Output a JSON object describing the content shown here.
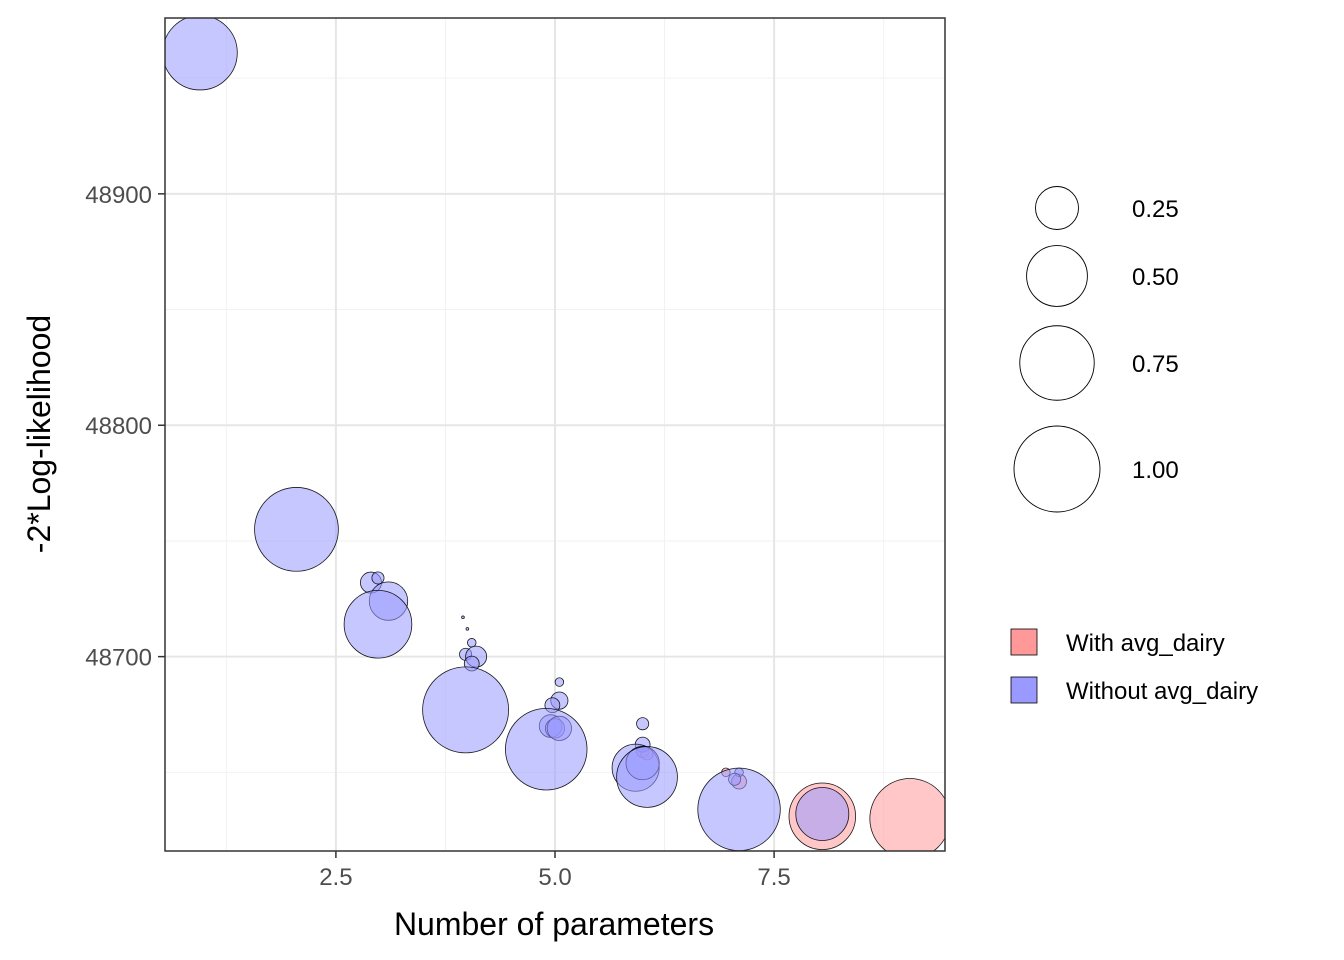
{
  "chart_data": {
    "type": "scatter",
    "xlabel": "Number of parameters",
    "ylabel": "-2*Log-likelihood",
    "xlim": [
      0.55,
      9.45
    ],
    "ylim": [
      48616,
      48976
    ],
    "x_ticks": [
      2.5,
      5.0,
      7.5
    ],
    "x_tick_labels": [
      "2.5",
      "5.0",
      "7.5"
    ],
    "y_ticks": [
      48700,
      48800,
      48900
    ],
    "y_tick_labels": [
      "48700",
      "48800",
      "48900"
    ],
    "grid": true,
    "size_legend": {
      "values": [
        0.25,
        0.5,
        0.75,
        1.0
      ],
      "labels": [
        "0.25",
        "0.50",
        "0.75",
        "1.00"
      ]
    },
    "color_legend": {
      "entries": [
        {
          "label": "With avg_dairy",
          "color": "#ff9999"
        },
        {
          "label": "Without avg_dairy",
          "color": "#9999ff"
        }
      ]
    },
    "legend_position": "right",
    "series": [
      {
        "name": "With avg_dairy",
        "color": "#ff9999",
        "points": [
          {
            "x": 6.0,
            "y": 48659,
            "weight": 0.02
          },
          {
            "x": 6.05,
            "y": 48658,
            "weight": 0.02
          },
          {
            "x": 6.95,
            "y": 48650,
            "weight": 0.01
          },
          {
            "x": 7.1,
            "y": 48646,
            "weight": 0.03
          },
          {
            "x": 8.05,
            "y": 48631,
            "weight": 0.6
          },
          {
            "x": 9.05,
            "y": 48630,
            "weight": 0.87
          }
        ]
      },
      {
        "name": "Without avg_dairy",
        "color": "#9999ff",
        "points": [
          {
            "x": 0.95,
            "y": 48961,
            "weight": 0.75
          },
          {
            "x": 2.05,
            "y": 48755,
            "weight": 0.95
          },
          {
            "x": 2.9,
            "y": 48732,
            "weight": 0.06
          },
          {
            "x": 2.98,
            "y": 48734,
            "weight": 0.02
          },
          {
            "x": 3.1,
            "y": 48724,
            "weight": 0.2
          },
          {
            "x": 2.98,
            "y": 48714,
            "weight": 0.62
          },
          {
            "x": 3.95,
            "y": 48717,
            "weight": 0.001
          },
          {
            "x": 4.0,
            "y": 48712,
            "weight": 0.001
          },
          {
            "x": 4.05,
            "y": 48706,
            "weight": 0.01
          },
          {
            "x": 3.98,
            "y": 48701,
            "weight": 0.02
          },
          {
            "x": 4.1,
            "y": 48700,
            "weight": 0.06
          },
          {
            "x": 4.05,
            "y": 48697,
            "weight": 0.03
          },
          {
            "x": 3.98,
            "y": 48677,
            "weight": 1.0
          },
          {
            "x": 5.05,
            "y": 48689,
            "weight": 0.01
          },
          {
            "x": 5.05,
            "y": 48681,
            "weight": 0.04
          },
          {
            "x": 4.97,
            "y": 48679,
            "weight": 0.03
          },
          {
            "x": 4.95,
            "y": 48670,
            "weight": 0.07
          },
          {
            "x": 5.0,
            "y": 48669,
            "weight": 0.05
          },
          {
            "x": 5.05,
            "y": 48669,
            "weight": 0.08
          },
          {
            "x": 4.9,
            "y": 48660,
            "weight": 0.9
          },
          {
            "x": 6.0,
            "y": 48671,
            "weight": 0.02
          },
          {
            "x": 6.0,
            "y": 48662,
            "weight": 0.03
          },
          {
            "x": 5.92,
            "y": 48652,
            "weight": 0.3
          },
          {
            "x": 6.0,
            "y": 48654,
            "weight": 0.15
          },
          {
            "x": 6.05,
            "y": 48648,
            "weight": 0.5
          },
          {
            "x": 7.1,
            "y": 48650,
            "weight": 0.01
          },
          {
            "x": 7.05,
            "y": 48647,
            "weight": 0.02
          },
          {
            "x": 7.1,
            "y": 48634,
            "weight": 0.92
          },
          {
            "x": 8.05,
            "y": 48632,
            "weight": 0.38
          }
        ]
      }
    ]
  }
}
